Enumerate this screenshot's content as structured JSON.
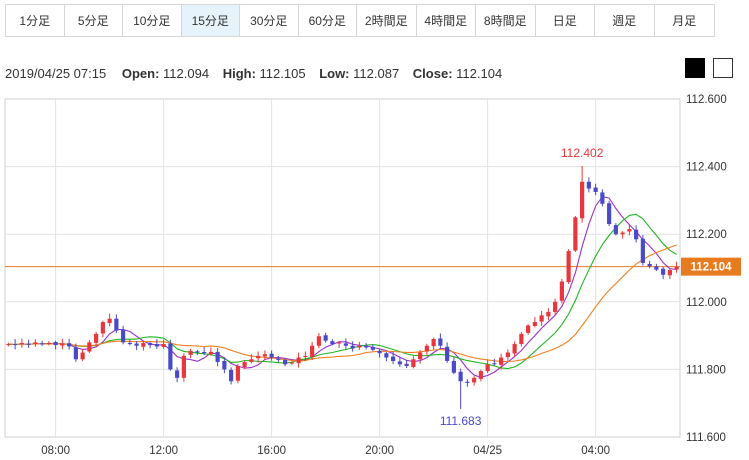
{
  "timeframes": [
    {
      "label": "1分足",
      "active": false
    },
    {
      "label": "5分足",
      "active": false
    },
    {
      "label": "10分足",
      "active": false
    },
    {
      "label": "15分足",
      "active": true
    },
    {
      "label": "30分足",
      "active": false
    },
    {
      "label": "60分足",
      "active": false
    },
    {
      "label": "2時間足",
      "active": false
    },
    {
      "label": "4時間足",
      "active": false
    },
    {
      "label": "8時間足",
      "active": false
    },
    {
      "label": "日足",
      "active": false
    },
    {
      "label": "週足",
      "active": false
    },
    {
      "label": "月足",
      "active": false
    }
  ],
  "ohlc": {
    "timestamp": "2019/04/25 07:15",
    "open_label": "Open:",
    "open": "112.094",
    "high_label": "High:",
    "high": "112.105",
    "low_label": "Low:",
    "low": "112.087",
    "close_label": "Close:",
    "close": "112.104"
  },
  "chart_data": {
    "type": "candlestick",
    "ylim": [
      111.6,
      112.6
    ],
    "yticks": [
      "112.600",
      "112.400",
      "112.200",
      "112.000",
      "111.800",
      "111.600"
    ],
    "xticks": [
      "08:00",
      "12:00",
      "16:00",
      "20:00",
      "04/25",
      "04:00"
    ],
    "xtick_index": [
      7,
      23,
      39,
      55,
      71,
      87
    ],
    "current_price": 112.104,
    "current_label": "112.104",
    "high_annotation": {
      "label": "112.402",
      "index": 85
    },
    "low_annotation": {
      "label": "111.683",
      "index": 67
    },
    "up_color": "#e8363c",
    "down_color": "#4a4ac8",
    "ma_colors": [
      "#9932cc",
      "#22b522",
      "#f08020"
    ],
    "closes": [
      111.875,
      111.872,
      111.878,
      111.873,
      111.88,
      111.875,
      111.878,
      111.872,
      111.876,
      111.868,
      111.83,
      111.85,
      111.88,
      111.905,
      111.94,
      111.95,
      111.915,
      111.88,
      111.875,
      111.87,
      111.878,
      111.872,
      111.868,
      111.875,
      111.8,
      111.775,
      111.84,
      111.855,
      111.85,
      111.848,
      111.852,
      111.822,
      111.8,
      111.765,
      111.81,
      111.822,
      111.83,
      111.84,
      111.845,
      111.835,
      111.828,
      111.815,
      111.82,
      111.835,
      111.84,
      111.87,
      111.898,
      111.885,
      111.875,
      111.88,
      111.87,
      111.862,
      111.87,
      111.865,
      111.858,
      111.848,
      111.835,
      111.825,
      111.815,
      111.81,
      111.83,
      111.85,
      111.87,
      111.89,
      111.87,
      111.825,
      111.79,
      111.765,
      111.76,
      111.775,
      111.795,
      111.815,
      111.815,
      111.835,
      111.85,
      111.875,
      111.905,
      111.93,
      111.94,
      111.96,
      111.97,
      112.0,
      112.06,
      112.15,
      112.25,
      112.355,
      112.335,
      112.325,
      112.29,
      112.23,
      112.2,
      112.205,
      112.215,
      112.185,
      112.115,
      112.105,
      112.095,
      112.08,
      112.094,
      112.104
    ]
  }
}
